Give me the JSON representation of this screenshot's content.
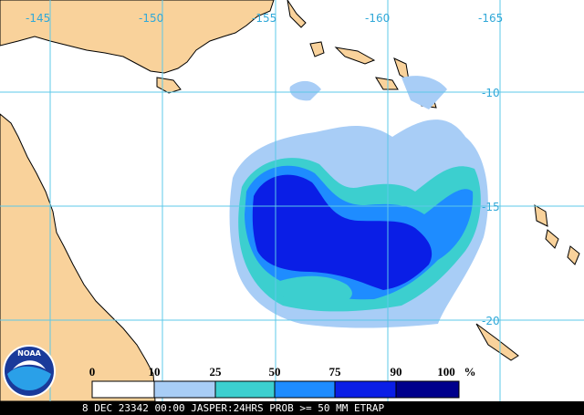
{
  "map": {
    "lon_labels": [
      "-145",
      "-150",
      "-155",
      "-160",
      "-165"
    ],
    "lat_labels": [
      "-10",
      "-15",
      "-20"
    ],
    "legend": {
      "ticks": [
        "0",
        "10",
        "25",
        "50",
        "75",
        "90",
        "100"
      ],
      "unit": "%"
    },
    "logo": "NOAA",
    "footer": "8 DEC 23342 00:00 JASPER:24HRS PROB >= 50 MM ETRAP"
  }
}
